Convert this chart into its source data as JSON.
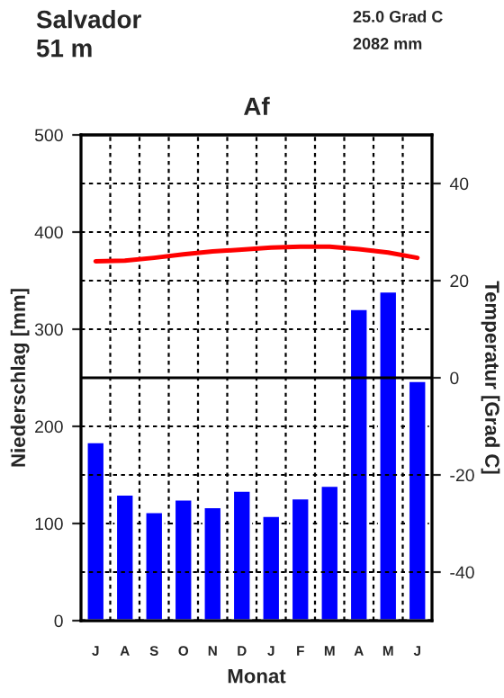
{
  "chart_data": {
    "type": "bar",
    "title": "Af",
    "annotations": [
      "Salvador",
      "51 m",
      "25.0 Grad C",
      "2082 mm"
    ],
    "categories": [
      "J",
      "A",
      "S",
      "O",
      "N",
      "D",
      "J",
      "F",
      "M",
      "A",
      "M",
      "J"
    ],
    "xlabel": "Monat",
    "ylabel": "Niederschlag [mm]",
    "y2label": "Temperatur [Grad C]",
    "series": [
      {
        "color": "#0000ff",
        "values": [
          184,
          130,
          112,
          125,
          117,
          134,
          108,
          126,
          139,
          321,
          339,
          247
        ]
      },
      {
        "type": "line",
        "axis": "y2",
        "color": "#ff0000",
        "values": [
          24.0,
          24.1,
          24.7,
          25.4,
          26.0,
          26.4,
          26.8,
          27.0,
          27.0,
          26.5,
          25.8,
          24.7
        ]
      }
    ],
    "ylim": [
      0,
      500
    ],
    "yticks": [
      0,
      100,
      200,
      300,
      400,
      500
    ],
    "y2lim": [
      -50,
      50
    ],
    "y2ticks": [
      -40,
      -20,
      0,
      20,
      40
    ],
    "ref_lines": [
      {
        "axis": "y2",
        "value": 0,
        "color": "#000000",
        "line_style": "solid"
      }
    ],
    "grid": true,
    "marker": "none",
    "line_style": "solid"
  }
}
